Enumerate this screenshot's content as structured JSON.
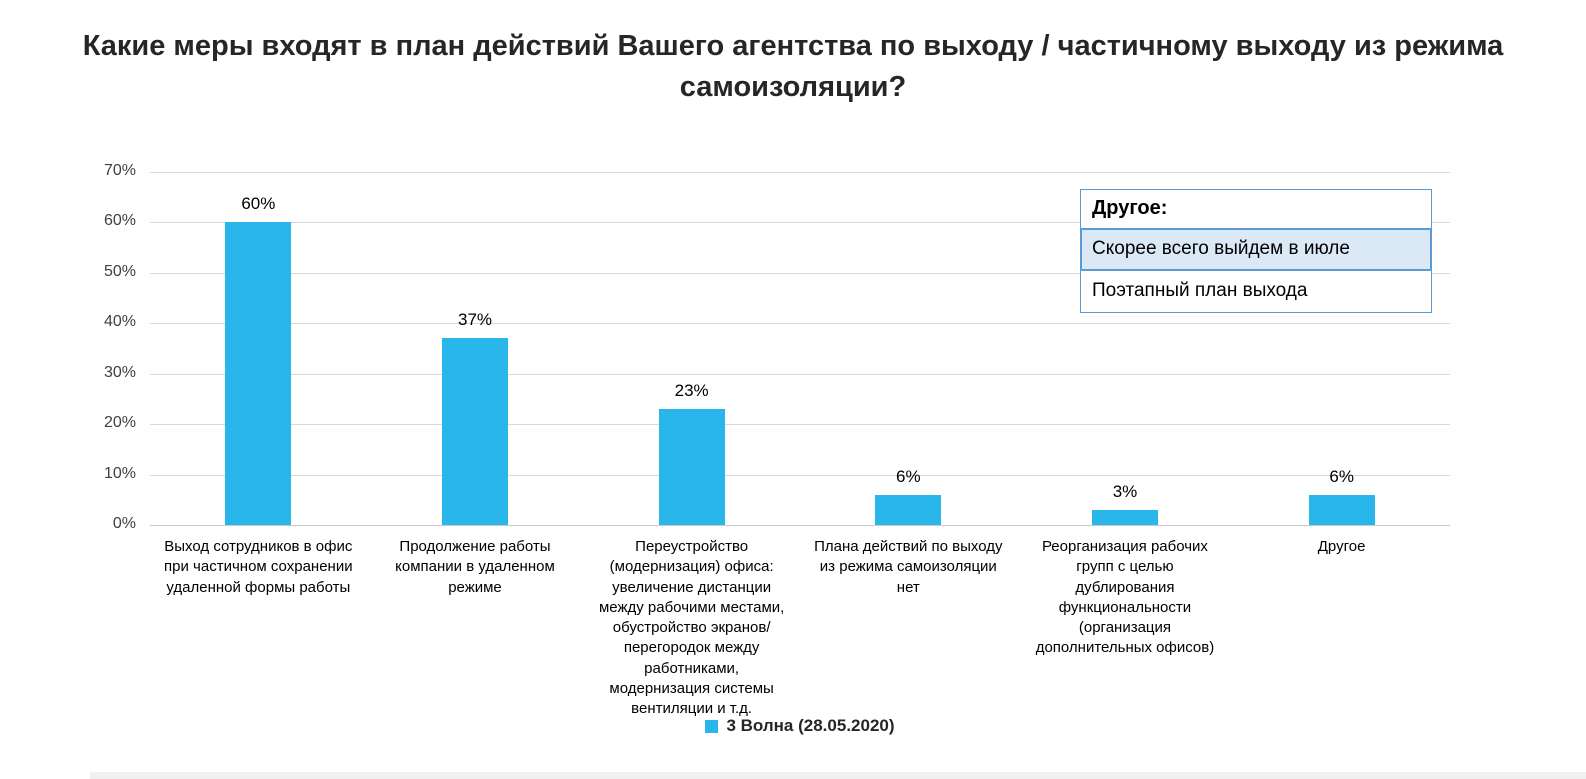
{
  "page": {
    "background": "#ffffff"
  },
  "chart_data": {
    "type": "bar",
    "title": "Какие меры входят в план действий Вашего агентства по выходу / частичному выходу из режима самоизоляции?",
    "categories": [
      "Выход сотрудников в офис при частичном сохранении удаленной формы работы",
      "Продолжение работы компании в удаленном режиме",
      "Переустройство (модернизация) офиса: увеличение дистанции между рабочими местами, обустройство экранов/перегородок между работниками, модернизация системы вентиляции и т.д.",
      "Плана действий по выходу из режима самоизоляции нет",
      "Реорганизация рабочих групп с целью дублирования функциональности (организация дополнительных офисов)",
      "Другое"
    ],
    "values": [
      60,
      37,
      23,
      6,
      3,
      6
    ],
    "value_labels": [
      "60%",
      "37%",
      "23%",
      "6%",
      "3%",
      "6%"
    ],
    "xlabel": "",
    "ylabel": "",
    "ylim": [
      0,
      70
    ],
    "ytick_values": [
      0,
      10,
      20,
      30,
      40,
      50,
      60,
      70
    ],
    "ytick_labels": [
      "0%",
      "10%",
      "20%",
      "30%",
      "40%",
      "50%",
      "60%",
      "70%"
    ],
    "grid": true,
    "bar_color": "#29b6ea",
    "legend": {
      "label": "3 Волна (28.05.2020)",
      "position": "bottom",
      "swatch_color": "#29b6ea"
    }
  },
  "annotation_box": {
    "header": "Другое:",
    "items": [
      {
        "text": "Скорее всего выйдем в июле",
        "highlighted": true
      },
      {
        "text": "Поэтапный план выхода",
        "highlighted": false
      }
    ],
    "border_color": "#5b9bd5",
    "highlight_color": "#dbe8f6"
  }
}
